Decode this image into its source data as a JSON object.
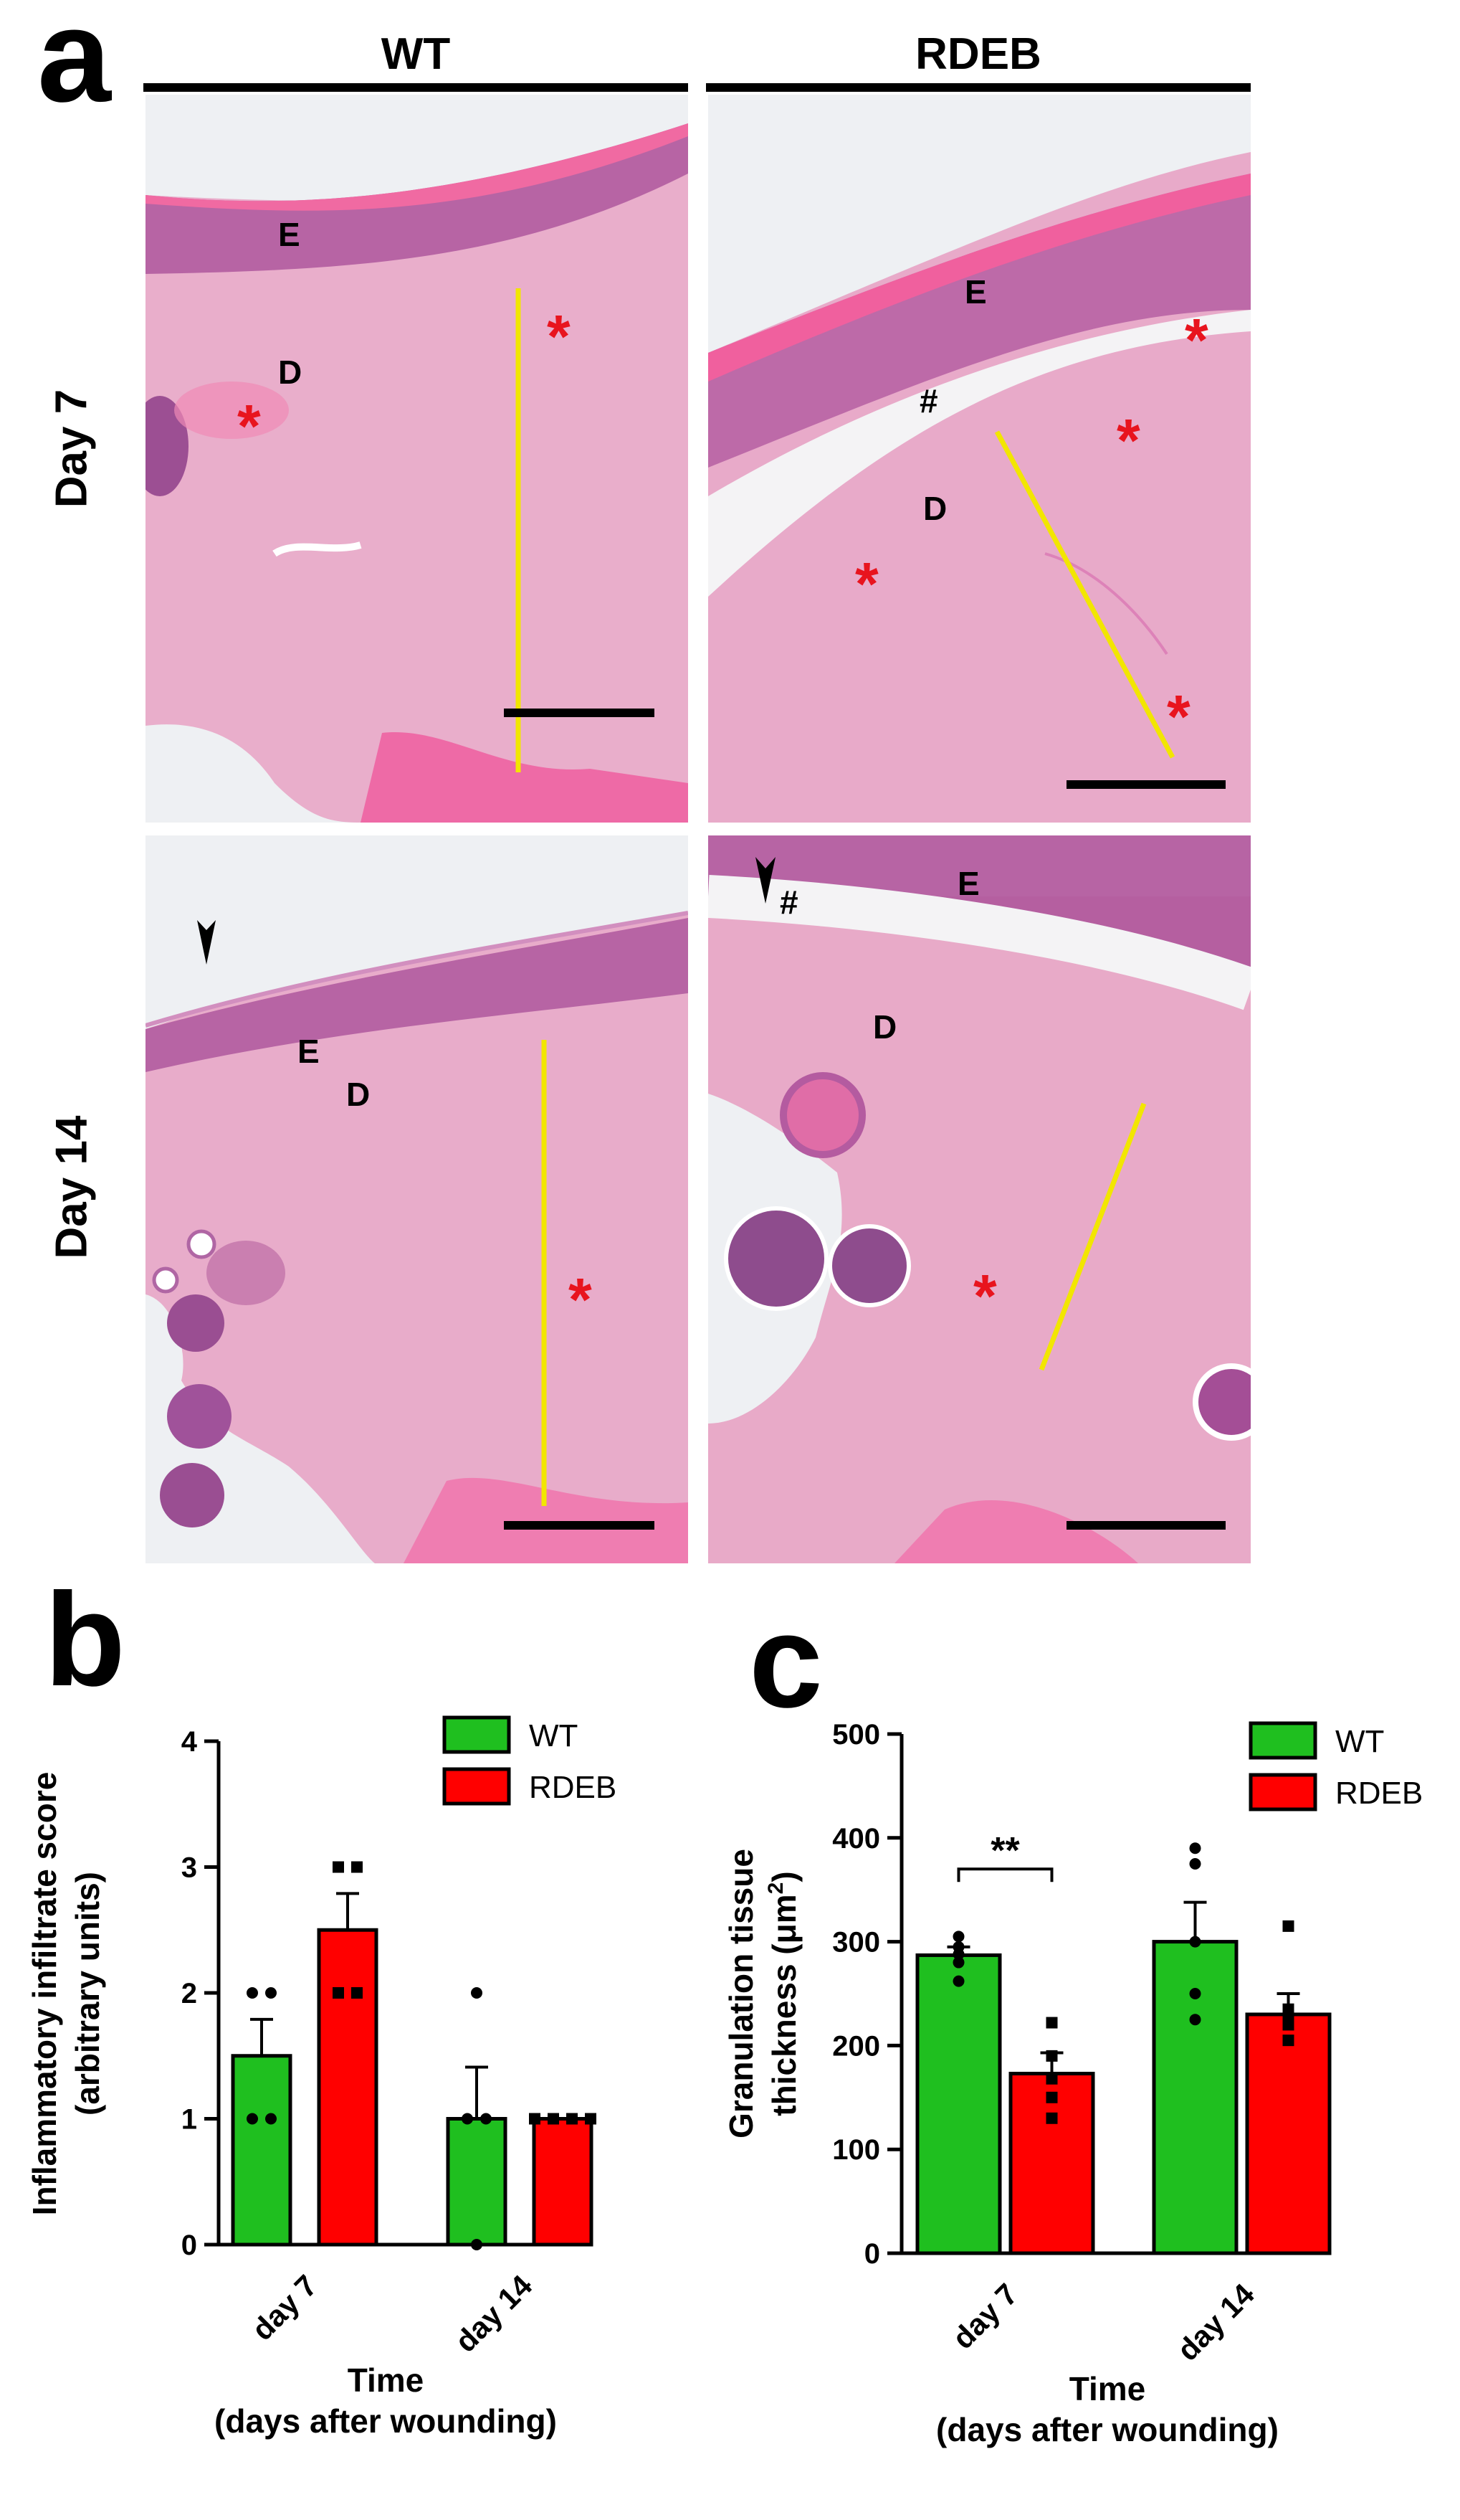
{
  "panel_a": {
    "letter": "a",
    "columns": [
      "WT",
      "RDEB"
    ],
    "rows": [
      "Day 7",
      "Day 14"
    ],
    "tiles": [
      {
        "labels": [
          "E",
          "D"
        ],
        "stars": 2,
        "hash": ""
      },
      {
        "labels": [
          "E",
          "D"
        ],
        "stars": 4,
        "hash": "#"
      },
      {
        "labels": [
          "E",
          "D"
        ],
        "stars": 1,
        "hash": ""
      },
      {
        "labels": [
          "E",
          "D"
        ],
        "stars": 1,
        "hash": "#"
      }
    ],
    "colors": {
      "tissue": "#e7a9c9",
      "epidermis": "#b85aa0",
      "keratin": "#f05a9a",
      "measure_line": "#f2e600",
      "scale_bar": "#000000",
      "star": "#e8141e"
    }
  },
  "panel_b": {
    "letter": "b"
  },
  "panel_c": {
    "letter": "c"
  },
  "chart_data": [
    {
      "type": "bar",
      "panel": "b",
      "categories": [
        "day 7",
        "day 14"
      ],
      "series": [
        {
          "name": "WT",
          "color": "#1fbf1f",
          "values": [
            1.5,
            1.0
          ],
          "sem": [
            0.29,
            0.41
          ],
          "points": [
            [
              2,
              2,
              1,
              1
            ],
            [
              2,
              1,
              1,
              0
            ]
          ]
        },
        {
          "name": "RDEB",
          "color": "#ff0000",
          "values": [
            2.5,
            1.0
          ],
          "sem": [
            0.29,
            0.0
          ],
          "points": [
            [
              3,
              3,
              2,
              2
            ],
            [
              1,
              1,
              1,
              1
            ]
          ]
        }
      ],
      "ylabel": "Inflammatory infiltrate score (arbitrary units)",
      "ylabel_lines": [
        "Inflammatory infiltrate score",
        "(arbitrary units)"
      ],
      "xlabel_lines": [
        "Time",
        "(days after wounding)"
      ],
      "ylim": [
        0,
        4
      ],
      "yticks": [
        "0",
        "1",
        "2",
        "3",
        "4"
      ],
      "legend": "top-right",
      "annotations": []
    },
    {
      "type": "bar",
      "panel": "c",
      "categories": [
        "day 7",
        "day 14"
      ],
      "series": [
        {
          "name": "WT",
          "color": "#1fbf1f",
          "values": [
            287,
            300
          ],
          "sem": [
            8,
            38
          ],
          "points": [
            [
              305,
              295,
              288,
              280,
              262
            ],
            [
              390,
              375,
              300,
              250,
              225
            ]
          ]
        },
        {
          "name": "RDEB",
          "color": "#ff0000",
          "values": [
            173,
            230
          ],
          "sem": [
            20,
            20
          ],
          "points": [
            [
              222,
              190,
              168,
              150,
              130
            ],
            [
              315,
              235,
              230,
              220,
              205
            ]
          ]
        }
      ],
      "ylabel_lines": [
        "Granulation tissue",
        "thickness (μm",
        "2",
        ")"
      ],
      "xlabel_lines": [
        "Time",
        "(days after wounding)"
      ],
      "ylim": [
        0,
        500
      ],
      "yticks": [
        "0",
        "100",
        "200",
        "300",
        "400",
        "500"
      ],
      "legend": "top-right",
      "annotations": [
        "**"
      ]
    }
  ]
}
